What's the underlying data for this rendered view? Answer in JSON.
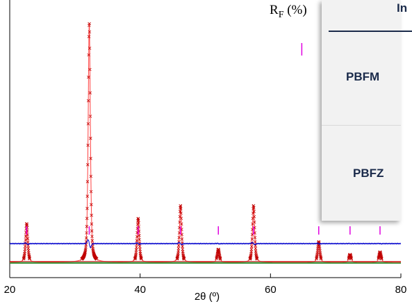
{
  "chart_data": {
    "type": "line",
    "xlabel": "2θ (º)",
    "xlim": [
      20,
      80
    ],
    "xticks": [
      20,
      40,
      60,
      80
    ],
    "ylim": [
      -0.06,
      1.02
    ],
    "peaks": [
      {
        "x": 22.6,
        "h": 0.15
      },
      {
        "x": 32.2,
        "h": 0.93
      },
      {
        "x": 39.7,
        "h": 0.17
      },
      {
        "x": 46.2,
        "h": 0.22
      },
      {
        "x": 52.0,
        "h": 0.05
      },
      {
        "x": 57.4,
        "h": 0.22
      },
      {
        "x": 67.4,
        "h": 0.08
      },
      {
        "x": 72.2,
        "h": 0.03
      },
      {
        "x": 76.8,
        "h": 0.04
      }
    ],
    "bragg_positions": [
      22.6,
      32.2,
      39.7,
      46.2,
      52.0,
      57.4,
      64.8,
      67.4,
      72.2,
      76.8
    ],
    "series": [
      {
        "role": "observed",
        "color": "#c00000"
      },
      {
        "role": "calculated",
        "color": "#ff4040"
      },
      {
        "role": "background",
        "color": "#2e8b2e"
      },
      {
        "role": "difference",
        "color": "#0000cc"
      },
      {
        "role": "bragg",
        "color": "#e000e0"
      }
    ]
  },
  "overlay": {
    "rf_label_main": "R",
    "rf_label_sub": "F",
    "rf_label_unit": " (%)",
    "table_header_fragment": "In",
    "rows": [
      "PBFM",
      "PBFZ"
    ]
  }
}
